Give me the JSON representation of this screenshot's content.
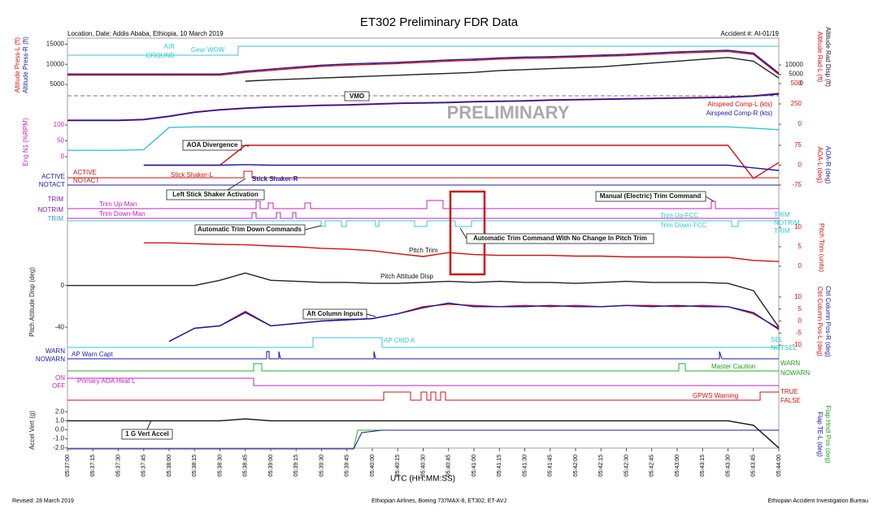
{
  "header": {
    "title": "ET302 Preliminary FDR Data",
    "location": "Location, Date: Addis Ababa, Ethiopia, 10 March 2019",
    "accident": "Accident #: AI-01/19",
    "watermark": "PRELIMINARY"
  },
  "footer": {
    "revised": "Revised: 28 March 2019",
    "aircraft": "Ethiopian Airlines, Boeing 737MAX-8, ET302, ET-AVJ",
    "bureau": "Ethiopian Accident Investigation Bureau"
  },
  "x_axis": {
    "label": "UTC (HH:MM:SS)",
    "ticks": [
      "05:37:00",
      "05:37:15",
      "05:37:30",
      "05:37:45",
      "05:38:00",
      "05:38:15",
      "05:38:30",
      "05:38:45",
      "05:39:00",
      "05:39:15",
      "05:39:30",
      "05:39:45",
      "05:40:00",
      "05:40:15",
      "05:40:30",
      "05:40:45",
      "05:41:00",
      "05:41:15",
      "05:41:30",
      "05:41:45",
      "05:42:00",
      "05:42:15",
      "05:42:30",
      "05:42:45",
      "05:43:00",
      "05:43:15",
      "05:43:30",
      "05:43:45",
      "05:44:00"
    ]
  },
  "axis_titles": {
    "left": [
      "Altitude Press-L (ft)",
      "Altitude Press-R (ft)",
      "Eng N1 (%RPM)",
      "Pitch Attitude Disp (deg)",
      "Accel Vert (g)"
    ],
    "right": [
      "Altitude Rad Disp (ft)",
      "Altitude Rad-L (ft)",
      "AOA-L (deg)",
      "AOA-R (deg)",
      "Pitch Trim (units)",
      "Ctrl Column Pos-L (deg)",
      "Ctrl Column Pos-R (deg)",
      "Flap TE-L (deg)",
      "Flap Hndl Pos (deg)"
    ],
    "airspeed": [
      "Airspeed Comp-L (kts)",
      "Airspeed Comp-R (kts)"
    ]
  },
  "states": [
    "AIR",
    "GROUND",
    "Gear WOW",
    "ACTIVE",
    "NOTACT",
    "ACTIVE",
    "NOTACT",
    "Stick Shaker-L",
    "Stick Shaker-R",
    "TRIM",
    "NOTRIM",
    "TRIM",
    "Trim Up-Man",
    "Trim Down-Man",
    "Trim Up-FCC",
    "Trim Down-FCC",
    "TRIM",
    "NOTRIM",
    "TRIM",
    "AP CMD A",
    "SEL",
    "NOTSEL",
    "WARN",
    "NOWARN",
    "AP Warn Capt",
    "Master Caution",
    "WARN",
    "NOWARN",
    "ON",
    "OFF",
    "Primary AOA Heat L",
    "GPWS Warning",
    "TRUE",
    "FALSE"
  ],
  "annotations": [
    "VMO",
    "AOA Divergence",
    "Left Stick Shaker Activation",
    "Manual (Electric) Trim Command",
    "Automatic Trim Down Commands",
    "Automatic Trim Command With No Change In Pitch Trim",
    "Pitch Trim",
    "Pitch Attitude Disp",
    "Aft Column Inputs",
    "1 G Vert Accel"
  ],
  "chart_data": [
    {
      "type": "line",
      "ylim": [
        4000,
        15500
      ],
      "yticks": [
        5000,
        10000,
        15000
      ],
      "y2lim": [
        -2600,
        22200
      ],
      "y2ticks": [
        0,
        5000,
        10000
      ],
      "series": [
        {
          "name": "Altitude Press-L",
          "color": "#d01010",
          "values": [
            7300,
            7300,
            7300,
            7300,
            7300,
            7300,
            7300,
            8000,
            8500,
            9000,
            9500,
            9800,
            10000,
            10200,
            10500,
            10800,
            11000,
            11300,
            11500,
            11600,
            11800,
            12000,
            12200,
            12500,
            12800,
            13000,
            13200,
            12500,
            7500
          ]
        },
        {
          "name": "Altitude Press-R",
          "color": "#1a1aa8",
          "values": [
            7600,
            7600,
            7600,
            7600,
            7600,
            7600,
            7600,
            8300,
            8800,
            9300,
            9800,
            10100,
            10300,
            10500,
            10800,
            11100,
            11300,
            11600,
            11800,
            11900,
            12100,
            12300,
            12500,
            12800,
            13100,
            13300,
            13500,
            12800,
            7800
          ]
        },
        {
          "name": "Altitude Rad Disp",
          "color": "#222222",
          "axis": "y2",
          "values": [
            null,
            null,
            null,
            null,
            null,
            null,
            null,
            1300,
            2000,
            2500,
            3000,
            3500,
            4000,
            4500,
            5000,
            5500,
            6000,
            7000,
            7500,
            8000,
            8500,
            9000,
            10000,
            11000,
            12000,
            13000,
            14000,
            12000,
            3000
          ]
        }
      ]
    },
    {
      "type": "line",
      "ylim": [
        0,
        500
      ],
      "yticks": [
        0,
        250,
        500
      ],
      "series": [
        {
          "name": "Airspeed Comp-L",
          "color": "#d01010",
          "values": [
            50,
            50,
            50,
            60,
            100,
            150,
            180,
            200,
            215,
            225,
            235,
            240,
            250,
            260,
            265,
            270,
            280,
            285,
            290,
            300,
            305,
            310,
            315,
            320,
            325,
            330,
            335,
            350,
            380
          ]
        },
        {
          "name": "Airspeed Comp-R",
          "color": "#1a1aa8",
          "values": [
            45,
            45,
            45,
            55,
            95,
            145,
            175,
            195,
            210,
            220,
            230,
            235,
            245,
            255,
            260,
            265,
            275,
            280,
            285,
            295,
            300,
            305,
            310,
            315,
            320,
            325,
            330,
            345,
            370
          ]
        }
      ]
    },
    {
      "type": "line",
      "ylim": [
        0,
        100
      ],
      "yticks": [
        0,
        50,
        100
      ],
      "series": [
        {
          "name": "Eng N1",
          "color": "#30c8d0",
          "values": [
            20,
            20,
            20,
            22,
            92,
            94,
            94,
            94,
            94,
            94,
            94,
            94,
            94,
            94,
            94,
            94,
            94,
            94,
            94,
            94,
            94,
            94,
            94,
            94,
            94,
            94,
            94,
            90,
            85
          ]
        }
      ]
    },
    {
      "type": "line",
      "ylim": [
        -75,
        75
      ],
      "yticks": [
        -75,
        0,
        75
      ],
      "series": [
        {
          "name": "AOA-L",
          "color": "#d01010",
          "values": [
            null,
            null,
            null,
            0,
            0,
            0,
            0,
            75,
            75,
            75,
            75,
            75,
            75,
            75,
            75,
            75,
            75,
            75,
            75,
            75,
            75,
            75,
            75,
            75,
            75,
            75,
            75,
            -50,
            10
          ]
        },
        {
          "name": "AOA-R",
          "color": "#1a1aa8",
          "values": [
            null,
            null,
            null,
            0,
            0,
            0,
            0,
            2,
            0,
            0,
            0,
            0,
            0,
            0,
            0,
            0,
            0,
            0,
            0,
            0,
            0,
            0,
            0,
            0,
            0,
            0,
            0,
            -10,
            -20
          ]
        }
      ]
    },
    {
      "type": "line",
      "ylim": [
        0,
        10
      ],
      "yticks": [
        0,
        5,
        10
      ],
      "series": [
        {
          "name": "Pitch Trim",
          "color": "#d01010",
          "values": [
            null,
            null,
            null,
            6,
            6,
            5.8,
            5.6,
            5.5,
            5.2,
            5,
            4.6,
            4.4,
            4,
            3.2,
            2.5,
            3.5,
            3,
            2.8,
            2.8,
            2.8,
            2.6,
            2.6,
            2.4,
            2.4,
            2.4,
            2.3,
            2.3,
            1.5,
            1.2
          ]
        }
      ]
    },
    {
      "type": "line",
      "ylim": [
        -50,
        20
      ],
      "yticks": [
        -40,
        0
      ],
      "series": [
        {
          "name": "Pitch Attitude Disp",
          "color": "#222222",
          "values": [
            0,
            0,
            0,
            0,
            0,
            0,
            5,
            12,
            5,
            4,
            3,
            3,
            2,
            2,
            3,
            4,
            3,
            4,
            3,
            3,
            2,
            3,
            4,
            3,
            3,
            3,
            2,
            -5,
            -40
          ]
        }
      ]
    },
    {
      "type": "line",
      "ylim": [
        -12,
        12
      ],
      "yticks": [
        -10,
        -5,
        0,
        5,
        10
      ],
      "series": [
        {
          "name": "Ctrl Column Pos-L",
          "color": "#d01010",
          "values": [
            null,
            null,
            null,
            null,
            -8.5,
            -3,
            -2,
            4,
            -2,
            -1,
            0,
            0.5,
            1,
            3,
            6,
            7,
            6.5,
            6,
            6.5,
            6,
            6.5,
            6,
            6.5,
            6.5,
            6,
            6.5,
            6,
            3,
            -3
          ]
        },
        {
          "name": "Ctrl Column Pos-R",
          "color": "#1a1aa8",
          "values": [
            null,
            null,
            null,
            null,
            -8.5,
            -3,
            -2,
            3.5,
            -2,
            -1,
            0,
            0.5,
            1,
            3,
            5.5,
            7.5,
            6,
            6,
            6,
            6.5,
            6,
            6,
            6.5,
            6,
            6.5,
            6,
            6,
            3.5,
            -3.5
          ]
        }
      ]
    },
    {
      "type": "line",
      "ylim": [
        -2.2,
        2.2
      ],
      "yticks": [
        {
          "value": -2,
          "label": "-2.0"
        },
        {
          "value": -1,
          "label": "-1.0"
        },
        {
          "value": 0,
          "label": "0.0"
        },
        {
          "value": 1,
          "label": "1.0"
        },
        {
          "value": 2,
          "label": "2.0"
        }
      ],
      "series": [
        {
          "name": "Accel Vert",
          "color": "#111111",
          "values": [
            1,
            1,
            1,
            1,
            1,
            1,
            1,
            1.2,
            1,
            1,
            1,
            1,
            1,
            1,
            1,
            1,
            1,
            1,
            1,
            1,
            1,
            1,
            1,
            1,
            1,
            1,
            1,
            0.5,
            -2
          ]
        }
      ]
    }
  ]
}
